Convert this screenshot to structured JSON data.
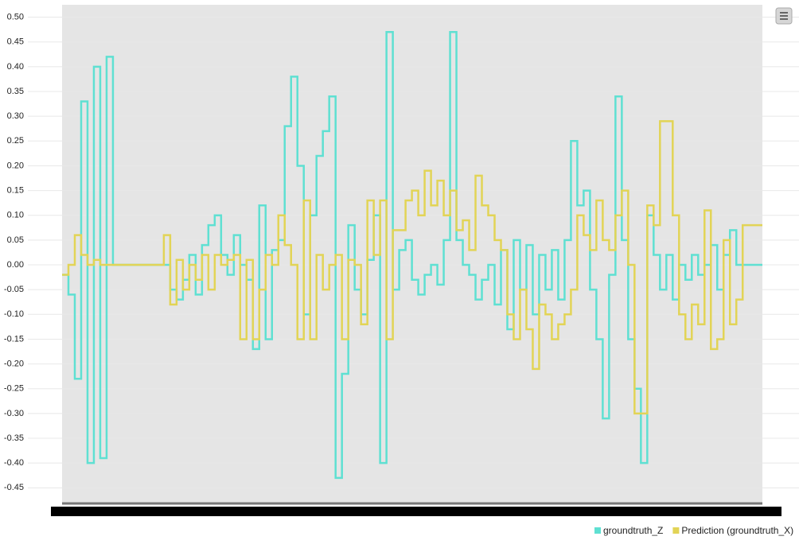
{
  "chart_data": {
    "type": "step-line",
    "categories": [
      null,
      null,
      null,
      null,
      null,
      null,
      null,
      null,
      null,
      null,
      null,
      null,
      null,
      null,
      null,
      null,
      null,
      null,
      null,
      null,
      null,
      null,
      null,
      null,
      null,
      null,
      null,
      null,
      null,
      null,
      null,
      null,
      null,
      null,
      null,
      null,
      null,
      null,
      null,
      null,
      null,
      null,
      null,
      null,
      null,
      null,
      null,
      null,
      null,
      null,
      null,
      null,
      null,
      null,
      null,
      null,
      null,
      null,
      null,
      null,
      null,
      null,
      null,
      null,
      null,
      null,
      null,
      null,
      null,
      null,
      null,
      null,
      null,
      null,
      null,
      null,
      null,
      null,
      null,
      null,
      null,
      null,
      null,
      null,
      null,
      null,
      null,
      null,
      null,
      null,
      null,
      null,
      null,
      null,
      null,
      null,
      null,
      null,
      null,
      null,
      null,
      null,
      null,
      null,
      null,
      null,
      null,
      null,
      null,
      null
    ],
    "series": [
      {
        "name": "groundtruth_Z",
        "color": "#5fe0d2",
        "values": [
          -0.02,
          -0.06,
          -0.23,
          0.33,
          -0.4,
          0.4,
          -0.39,
          0.42,
          0.0,
          0.0,
          0.0,
          0.0,
          0.0,
          0.0,
          0.0,
          0.0,
          0.0,
          -0.05,
          -0.07,
          -0.03,
          0.02,
          -0.06,
          0.04,
          0.08,
          0.1,
          0.02,
          -0.02,
          0.06,
          0.0,
          -0.03,
          -0.17,
          0.12,
          -0.15,
          0.03,
          0.05,
          0.28,
          0.38,
          0.2,
          -0.1,
          0.1,
          0.22,
          0.27,
          0.34,
          -0.43,
          -0.22,
          0.08,
          -0.05,
          -0.1,
          0.01,
          0.1,
          -0.4,
          0.47,
          -0.05,
          0.03,
          0.05,
          -0.03,
          -0.06,
          -0.02,
          0.0,
          -0.04,
          0.05,
          0.47,
          0.05,
          0.0,
          -0.02,
          -0.07,
          -0.03,
          0.0,
          -0.08,
          0.03,
          -0.13,
          0.05,
          -0.05,
          0.04,
          -0.1,
          0.02,
          -0.05,
          0.03,
          -0.07,
          0.05,
          0.25,
          0.12,
          0.15,
          -0.05,
          -0.15,
          -0.31,
          -0.02,
          0.34,
          0.05,
          -0.15,
          -0.25,
          -0.4,
          0.1,
          0.02,
          -0.05,
          0.02,
          -0.07,
          0.0,
          -0.03,
          0.02,
          -0.02,
          0.0,
          0.04,
          -0.05,
          0.02,
          0.07,
          0.0,
          0.0,
          0.0,
          0.0
        ]
      },
      {
        "name": "Prediction (groundtruth_X)",
        "color": "#e2d456",
        "values": [
          -0.02,
          0.0,
          0.06,
          0.02,
          0.0,
          0.01,
          0.0,
          0.0,
          0.0,
          0.0,
          0.0,
          0.0,
          0.0,
          0.0,
          0.0,
          0.0,
          0.06,
          -0.08,
          0.01,
          -0.05,
          0.0,
          -0.03,
          0.02,
          -0.05,
          0.02,
          0.0,
          0.01,
          0.02,
          -0.15,
          0.01,
          -0.15,
          -0.05,
          0.02,
          0.0,
          0.1,
          0.04,
          0.0,
          -0.15,
          0.13,
          -0.15,
          0.02,
          -0.05,
          0.0,
          0.02,
          -0.15,
          0.01,
          0.0,
          -0.12,
          0.13,
          0.02,
          0.13,
          -0.15,
          0.07,
          0.07,
          0.13,
          0.15,
          0.1,
          0.19,
          0.12,
          0.17,
          0.1,
          0.15,
          0.07,
          0.09,
          0.03,
          0.18,
          0.12,
          0.1,
          0.05,
          0.03,
          -0.1,
          -0.15,
          -0.05,
          -0.13,
          -0.21,
          -0.08,
          -0.1,
          -0.15,
          -0.12,
          -0.1,
          -0.05,
          0.1,
          0.06,
          0.03,
          0.13,
          0.05,
          0.03,
          0.1,
          0.15,
          0.0,
          -0.3,
          -0.3,
          0.12,
          0.08,
          0.29,
          0.29,
          0.1,
          -0.1,
          -0.15,
          -0.08,
          -0.12,
          0.11,
          -0.17,
          -0.15,
          0.05,
          -0.12,
          -0.07,
          0.08,
          0.08,
          0.08
        ]
      }
    ],
    "ylim": [
      -0.48,
      0.525
    ],
    "yticks": [
      {
        "value": 0.5,
        "label": "0.50"
      },
      0.45,
      {
        "value": 0.4,
        "label": "0.40"
      },
      0.35,
      {
        "value": 0.3,
        "label": "0.30"
      },
      0.25,
      {
        "value": 0.2,
        "label": "0.20"
      },
      0.15,
      {
        "value": 0.1,
        "label": "0.10"
      },
      0.05,
      {
        "value": 0,
        "label": "0.00"
      },
      -0.05,
      {
        "value": -0.1,
        "label": "-0.10"
      },
      -0.15,
      {
        "value": -0.2,
        "label": "-0.20"
      },
      -0.25,
      {
        "value": -0.3,
        "label": "-0.30"
      },
      -0.35,
      {
        "value": -0.4,
        "label": "-0.40"
      },
      -0.45
    ],
    "grid": true,
    "legend": "bottom-right"
  }
}
